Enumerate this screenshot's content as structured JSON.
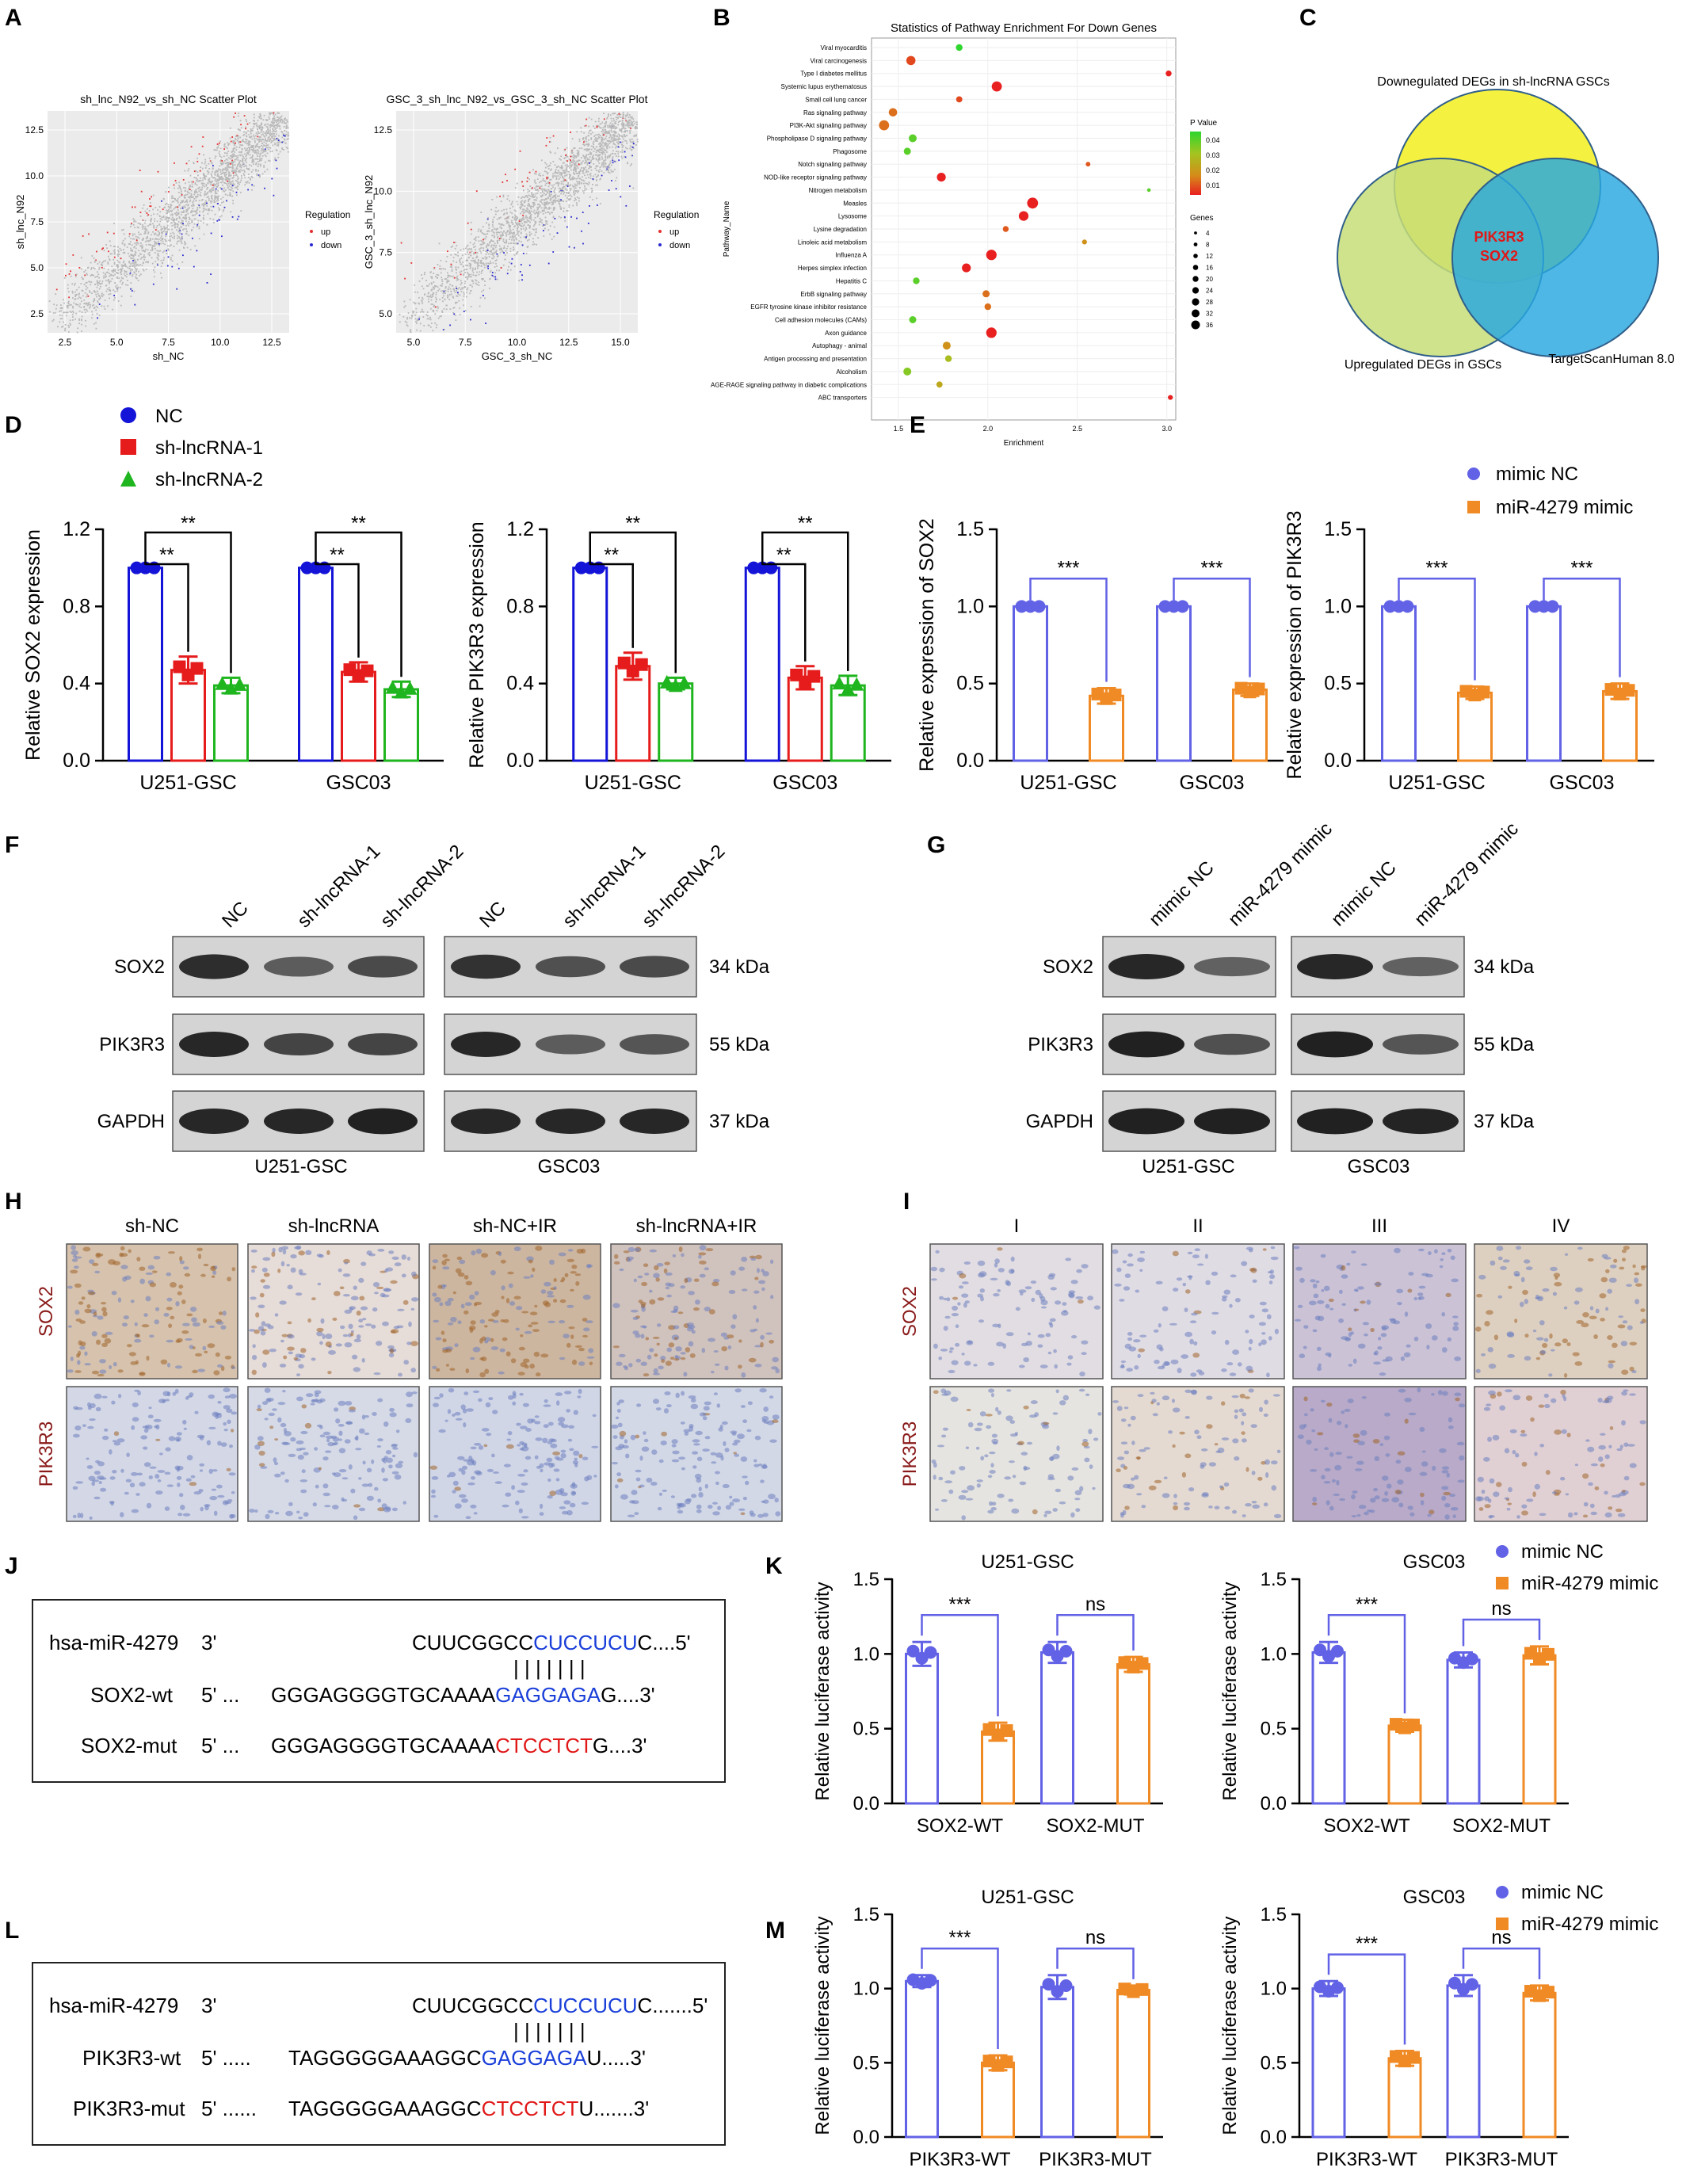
{
  "colors": {
    "NC_blue": "#1414d8",
    "sh1_red": "#e61c1c",
    "sh2_green": "#1fb51f",
    "mimicNC": "#6262e6",
    "mimic4279": "#f08a24",
    "scatter_up": "#e53030",
    "scatter_down": "#2a2ad0",
    "scatter_ns": "#b8b8b8"
  },
  "panel_labels": {
    "A": "A",
    "B": "B",
    "C": "C",
    "D": "D",
    "E": "E",
    "F": "F",
    "G": "G",
    "H": "H",
    "I": "I",
    "J": "J",
    "K": "K",
    "L": "L",
    "M": "M"
  },
  "panelA": {
    "plots": [
      {
        "title": "sh_lnc_N92_vs_sh_NC Scatter Plot",
        "xlabel": "sh_NC",
        "ylabel": "sh_lnc_N92",
        "xticks": [
          "2.5",
          "5.0",
          "7.5",
          "10.0",
          "12.5"
        ],
        "yticks": [
          "2.5",
          "5.0",
          "7.5",
          "10.0",
          "12.5"
        ]
      },
      {
        "title": "GSC_3_sh_lnc_N92_vs_GSC_3_sh_NC Scatter Plot",
        "xlabel": "GSC_3_sh_NC",
        "ylabel": "GSC_3_sh_lnc_N92",
        "xticks": [
          "5.0",
          "7.5",
          "10.0",
          "12.5",
          "15.0"
        ],
        "yticks": [
          "5.0",
          "7.5",
          "10.0",
          "12.5"
        ]
      }
    ],
    "legend_title": "Regulation",
    "legend": [
      "up",
      "down"
    ]
  },
  "panelB": {
    "title": "Statistics of Pathway Enrichment For Down Genes",
    "xlabel": "Enrichment",
    "ylabel": "Pathway_Name",
    "xticks": [
      "1.5",
      "2.0",
      "2.5",
      "3.0"
    ],
    "pvalue_title": "P Value",
    "pvalue_ticks": [
      "0.04",
      "0.03",
      "0.02",
      "0.01"
    ],
    "genes_title": "Genes",
    "genes_ticks": [
      "4",
      "8",
      "12",
      "16",
      "20",
      "24",
      "28",
      "32",
      "36"
    ],
    "pathways": [
      "Viral myocarditis",
      "Viral carcinogenesis",
      "Type I diabetes mellitus",
      "Systemic lupus erythematosus",
      "Small cell lung cancer",
      "Ras signaling pathway",
      "PI3K-Akt signaling pathway",
      "Phospholipase D signaling pathway",
      "Phagosome",
      "Notch signaling pathway",
      "NOD-like receptor signaling pathway",
      "Nitrogen metabolism",
      "Measles",
      "Lysosome",
      "Lysine degradation",
      "Linoleic acid metabolism",
      "Influenza A",
      "Herpes simplex infection",
      "Hepatitis C",
      "ErbB signaling pathway",
      "EGFR tyrosine kinase inhibitor resistance",
      "Cell adhesion molecules (CAMs)",
      "Axon guidance",
      "Autophagy - animal",
      "Antigen processing and presentation",
      "Alcoholism",
      "AGE-RAGE signaling pathway in diabetic complications",
      "ABC transporters"
    ]
  },
  "panelC": {
    "set1": "Downegulated DEGs  in sh-lncRNA GSCs",
    "set2": "Upregulated DEGs  in GSCs",
    "set3": "TargetScanHuman 8.0",
    "genes": [
      "PIK3R3",
      "SOX2"
    ]
  },
  "legendD": [
    "NC",
    "sh-lncRNA-1",
    "sh-lncRNA-2"
  ],
  "legendE": [
    "mimic NC",
    "miR-4279 mimic"
  ],
  "chart_data": [
    {
      "id": "D-SOX2",
      "type": "bar",
      "ylabel": "Relative SOX2 expression",
      "categories": [
        "U251-GSC",
        "GSC03"
      ],
      "ylim": [
        0,
        1.2
      ],
      "yticks": [
        "0.0",
        "0.4",
        "0.8",
        "1.2"
      ],
      "series": [
        {
          "name": "NC",
          "values": [
            1.0,
            1.0
          ],
          "sd": [
            0,
            0
          ]
        },
        {
          "name": "sh-lncRNA-1",
          "values": [
            0.47,
            0.46
          ],
          "sd": [
            0.07,
            0.05
          ]
        },
        {
          "name": "sh-lncRNA-2",
          "values": [
            0.39,
            0.37
          ],
          "sd": [
            0.04,
            0.04
          ]
        }
      ],
      "sig": [
        [
          "**",
          "**"
        ],
        [
          "**",
          "**"
        ]
      ]
    },
    {
      "id": "D-PIK3R3",
      "type": "bar",
      "ylabel": "Relative PIK3R3 expression",
      "categories": [
        "U251-GSC",
        "GSC03"
      ],
      "ylim": [
        0,
        1.2
      ],
      "yticks": [
        "0.0",
        "0.4",
        "0.8",
        "1.2"
      ],
      "series": [
        {
          "name": "NC",
          "values": [
            1.0,
            1.0
          ],
          "sd": [
            0,
            0
          ]
        },
        {
          "name": "sh-lncRNA-1",
          "values": [
            0.49,
            0.43
          ],
          "sd": [
            0.07,
            0.06
          ]
        },
        {
          "name": "sh-lncRNA-2",
          "values": [
            0.4,
            0.39
          ],
          "sd": [
            0.03,
            0.05
          ]
        }
      ],
      "sig": [
        [
          "**",
          "**"
        ],
        [
          "**",
          "**"
        ]
      ]
    },
    {
      "id": "E-SOX2",
      "type": "bar",
      "ylabel": "Relative expression of SOX2",
      "categories": [
        "U251-GSC",
        "GSC03"
      ],
      "ylim": [
        0,
        1.5
      ],
      "yticks": [
        "0.0",
        "0.5",
        "1.0",
        "1.5"
      ],
      "series": [
        {
          "name": "mimic NC",
          "values": [
            1.0,
            1.0
          ],
          "sd": [
            0,
            0
          ]
        },
        {
          "name": "miR-4279 mimic",
          "values": [
            0.42,
            0.46
          ],
          "sd": [
            0.05,
            0.04
          ]
        }
      ],
      "sig": [
        [
          "***"
        ],
        [
          "***"
        ]
      ]
    },
    {
      "id": "E-PIK3R3",
      "type": "bar",
      "ylabel": "Relative expression of PIK3R3",
      "categories": [
        "U251-GSC",
        "GSC03"
      ],
      "ylim": [
        0,
        1.5
      ],
      "yticks": [
        "0.0",
        "0.5",
        "1.0",
        "1.5"
      ],
      "series": [
        {
          "name": "mimic NC",
          "values": [
            1.0,
            1.0
          ],
          "sd": [
            0,
            0
          ]
        },
        {
          "name": "miR-4279 mimic",
          "values": [
            0.44,
            0.45
          ],
          "sd": [
            0.04,
            0.05
          ]
        }
      ],
      "sig": [
        [
          "***"
        ],
        [
          "***"
        ]
      ]
    },
    {
      "id": "K-U251",
      "type": "bar",
      "title": "U251-GSC",
      "ylabel": "Relative luciferase activity",
      "categories": [
        "SOX2-WT",
        "SOX2-MUT"
      ],
      "ylim": [
        0,
        1.5
      ],
      "yticks": [
        "0.0",
        "0.5",
        "1.0",
        "1.5"
      ],
      "series": [
        {
          "name": "mimic NC",
          "values": [
            1.0,
            1.01
          ],
          "sd": [
            0.08,
            0.07
          ]
        },
        {
          "name": "miR-4279 mimic",
          "values": [
            0.48,
            0.93
          ],
          "sd": [
            0.06,
            0.05
          ]
        }
      ],
      "sig": [
        [
          "***"
        ],
        [
          "ns"
        ]
      ]
    },
    {
      "id": "K-GSC03",
      "type": "bar",
      "title": "GSC03",
      "ylabel": "Relative luciferase activity",
      "categories": [
        "SOX2-WT",
        "SOX2-MUT"
      ],
      "ylim": [
        0,
        1.5
      ],
      "yticks": [
        "0.0",
        "0.5",
        "1.0",
        "1.5"
      ],
      "series": [
        {
          "name": "mimic NC",
          "values": [
            1.01,
            0.96
          ],
          "sd": [
            0.07,
            0.05
          ]
        },
        {
          "name": "miR-4279 mimic",
          "values": [
            0.52,
            0.99
          ],
          "sd": [
            0.04,
            0.06
          ]
        }
      ],
      "sig": [
        [
          "***"
        ],
        [
          "ns"
        ]
      ]
    },
    {
      "id": "M-U251",
      "type": "bar",
      "title": "U251-GSC",
      "ylabel": "Relative luciferase activity",
      "categories": [
        "PIK3R3-WT",
        "PIK3R3-MUT"
      ],
      "ylim": [
        0,
        1.5
      ],
      "yticks": [
        "0.0",
        "0.5",
        "1.0",
        "1.5"
      ],
      "series": [
        {
          "name": "mimic NC",
          "values": [
            1.05,
            1.01
          ],
          "sd": [
            0.04,
            0.08
          ]
        },
        {
          "name": "miR-4279 mimic",
          "values": [
            0.5,
            0.99
          ],
          "sd": [
            0.05,
            0.03
          ]
        }
      ],
      "sig": [
        [
          "***"
        ],
        [
          "ns"
        ]
      ]
    },
    {
      "id": "M-GSC03",
      "type": "bar",
      "title": "GSC03",
      "ylabel": "Relative luciferase activity",
      "categories": [
        "PIK3R3-WT",
        "PIK3R3-MUT"
      ],
      "ylim": [
        0,
        1.5
      ],
      "yticks": [
        "0.0",
        "0.5",
        "1.0",
        "1.5"
      ],
      "series": [
        {
          "name": "mimic NC",
          "values": [
            1.0,
            1.02
          ],
          "sd": [
            0.05,
            0.07
          ]
        },
        {
          "name": "miR-4279 mimic",
          "values": [
            0.53,
            0.97
          ],
          "sd": [
            0.05,
            0.05
          ]
        }
      ],
      "sig": [
        [
          "***"
        ],
        [
          "ns"
        ]
      ]
    }
  ],
  "blotF": {
    "lanes": [
      "NC",
      "sh-lncRNA-1",
      "sh-lncRNA-2",
      "NC",
      "sh-lncRNA-1",
      "sh-lncRNA-2"
    ],
    "proteins": [
      "SOX2",
      "PIK3R3",
      "GAPDH"
    ],
    "sizes": [
      "34 kDa",
      "55 kDa",
      "37 kDa"
    ],
    "cells": [
      "U251-GSC",
      "GSC03"
    ]
  },
  "blotG": {
    "lanes": [
      "mimic NC",
      "miR-4279 mimic",
      "mimic NC",
      "miR-4279 mimic"
    ],
    "proteins": [
      "SOX2",
      "PIK3R3",
      "GAPDH"
    ],
    "sizes": [
      "34 kDa",
      "55 kDa",
      "37 kDa"
    ],
    "cells": [
      "U251-GSC",
      "GSC03"
    ]
  },
  "panelH": {
    "columns": [
      "sh-NC",
      "sh-lncRNA",
      "sh-NC+IR",
      "sh-lncRNA+IR"
    ],
    "rows": [
      "SOX2",
      "PIK3R3"
    ]
  },
  "panelI": {
    "columns": [
      "I",
      "II",
      "III",
      "IV"
    ],
    "rows": [
      "SOX2",
      "PIK3R3"
    ]
  },
  "panelJ": {
    "r1_name": "hsa-miR-4279",
    "r1_end": "3'",
    "r1_a": "CUUCGGCC",
    "r1_b": "CUCCUCU",
    "r1_c": "C....5'",
    "r2_name": "SOX2-wt",
    "r2_end": "5' ...",
    "r2_a": "GGGAGGGGTGCAAAA",
    "r2_b": "GAGGAGA",
    "r2_c": "G....3'",
    "r3_name": "SOX2-mut",
    "r3_end": "5' ...",
    "r3_a": "GGGAGGGGTGCAAAA",
    "r3_b": "CTCCTCT",
    "r3_c": "G....3'"
  },
  "panelL": {
    "r1_name": "hsa-miR-4279",
    "r1_end": "3'",
    "r1_a": "CUUCGGCC",
    "r1_b": "CUCCUCU",
    "r1_c": "C.......5'",
    "r2_name": "PIK3R3-wt",
    "r2_end": "5' .....",
    "r2_a": "TAGGGGGAAAGGC",
    "r2_b": "GAGGAGA",
    "r2_c": "U.....3'",
    "r3_name": "PIK3R3-mut",
    "r3_end": "5' ......",
    "r3_a": "TAGGGGGAAAGGC",
    "r3_b": "CTCCTCT",
    "r3_c": "U.......3'"
  },
  "bind_helpers": {
    "pipes": "| | | | | | |"
  }
}
